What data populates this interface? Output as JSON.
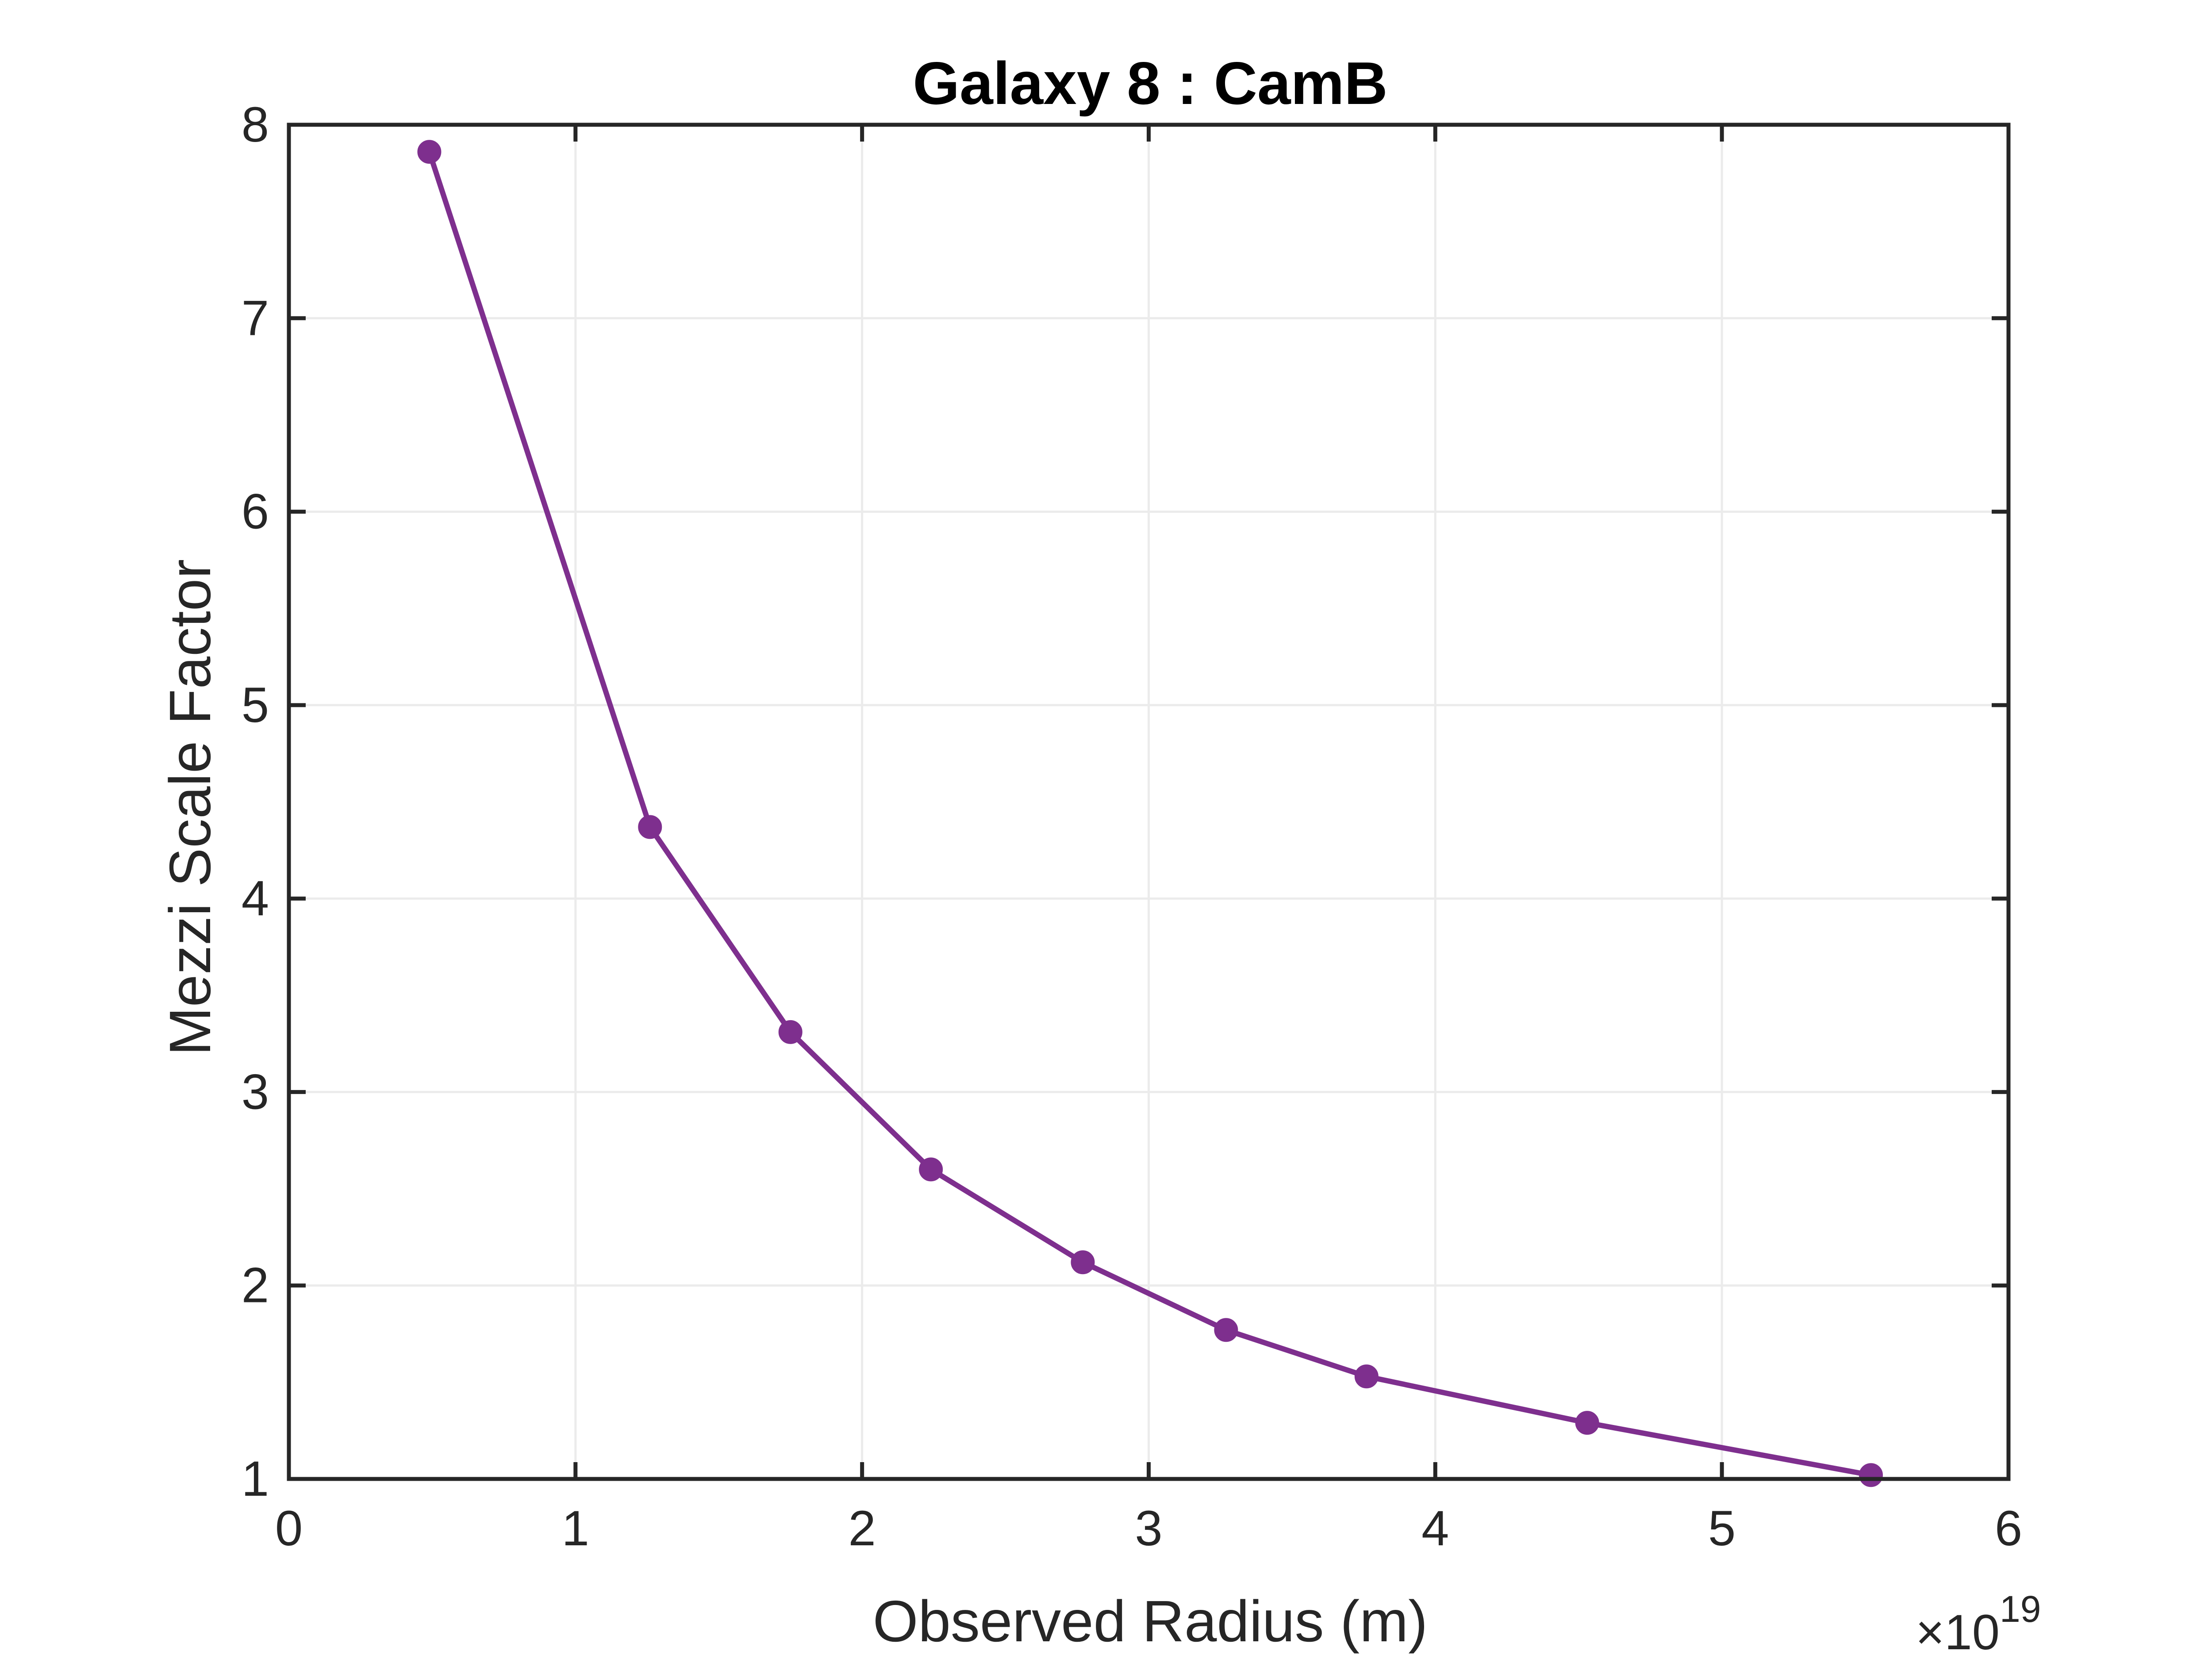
{
  "chart_data": {
    "type": "line",
    "title": "Galaxy 8 : CamB",
    "xlabel": "Observed Radius (m)",
    "ylabel": "Mezzi Scale Factor",
    "x_exponent": {
      "base": "10",
      "power": "19",
      "prefix": "×"
    },
    "xlim": [
      0,
      6
    ],
    "ylim": [
      1,
      8
    ],
    "x_ticks": [
      "0",
      "1",
      "2",
      "3",
      "4",
      "5",
      "6"
    ],
    "y_ticks": [
      "1",
      "2",
      "3",
      "4",
      "5",
      "6",
      "7",
      "8"
    ],
    "grid": true,
    "series_color": "#7E2F8E",
    "axis_color": "#262626",
    "grid_color": "#EBEBEB",
    "series": [
      {
        "x": [
          0.49,
          1.26,
          1.75,
          2.24,
          2.77,
          3.27,
          3.76,
          4.53,
          5.52
        ],
        "y": [
          7.86,
          4.37,
          3.31,
          2.6,
          2.12,
          1.77,
          1.53,
          1.29,
          1.02
        ]
      }
    ]
  }
}
